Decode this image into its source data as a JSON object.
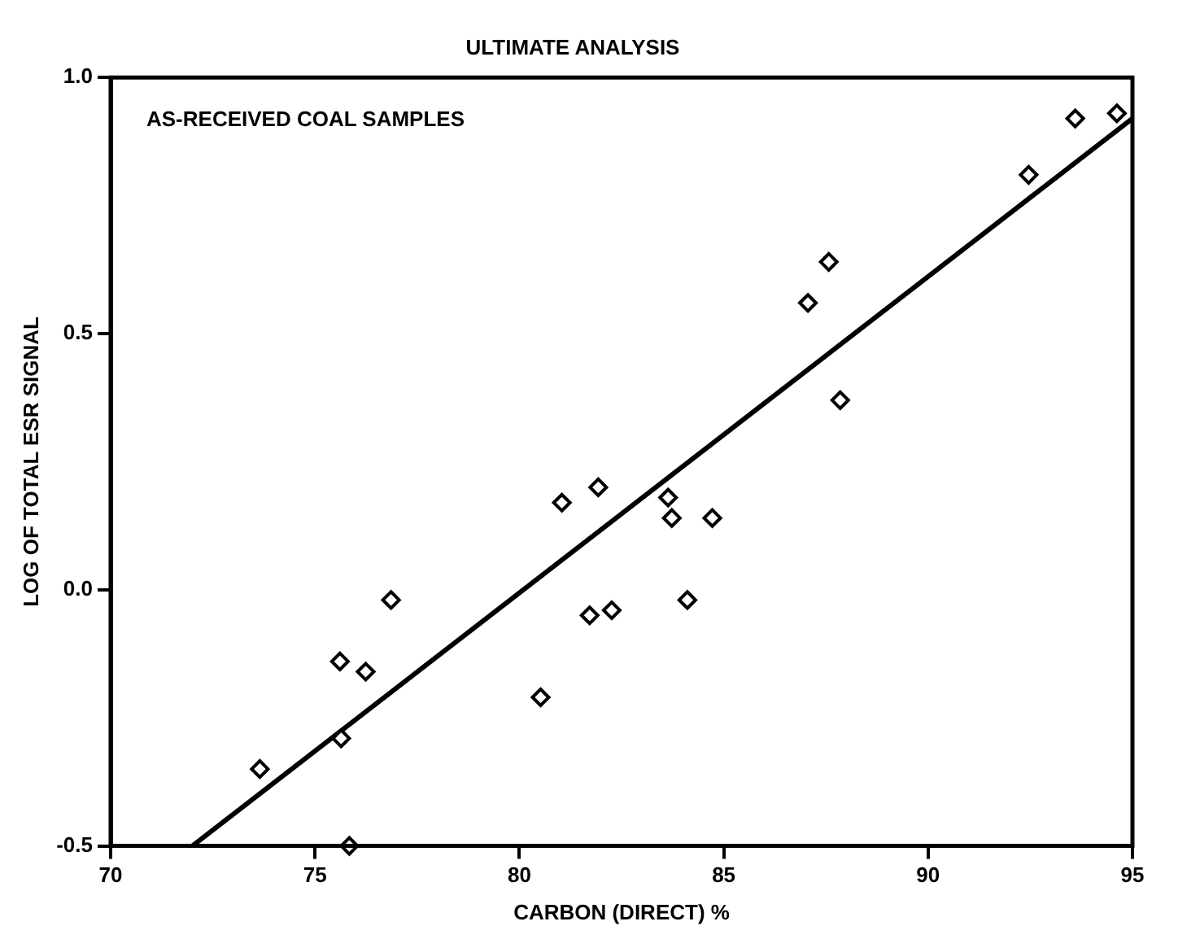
{
  "chart_data": {
    "type": "scatter",
    "title": "ULTIMATE ANALYSIS",
    "xlabel": "CARBON (DIRECT) %",
    "ylabel": "LOG OF TOTAL ESR SIGNAL",
    "annotations": [
      "AS-RECEIVED COAL SAMPLES"
    ],
    "xlim": [
      70,
      95
    ],
    "xticks": [
      70,
      75,
      80,
      85,
      90,
      95
    ],
    "ylim": [
      -0.5,
      1.0
    ],
    "yticks": [
      {
        "value": -0.5,
        "label": "-0.5"
      },
      {
        "value": 0,
        "label": "0.0"
      },
      {
        "value": 0.5,
        "label": "0.5"
      },
      {
        "value": 1,
        "label": "1.0"
      }
    ],
    "grid": false,
    "marker": "diamond",
    "series": [
      {
        "color": "#000000",
        "x": [
          73.65,
          75.61,
          76.24,
          76.86,
          75.64,
          75.84,
          80.52,
          81.72,
          82.26,
          81.04,
          81.93,
          84.11,
          83.64,
          83.73,
          84.72,
          87.06,
          87.57,
          87.85,
          92.46,
          93.6,
          94.62
        ],
        "values": [
          -0.35,
          -0.14,
          -0.16,
          -0.02,
          -0.29,
          -0.5,
          -0.21,
          -0.05,
          -0.04,
          0.17,
          0.2,
          -0.02,
          0.18,
          0.14,
          0.14,
          0.56,
          0.64,
          0.37,
          0.81,
          0.92,
          0.93
        ]
      },
      {
        "type": "line",
        "color": "#000000",
        "x": [
          72,
          95
        ],
        "values": [
          -0.5,
          0.92
        ],
        "marker": "none"
      }
    ]
  }
}
